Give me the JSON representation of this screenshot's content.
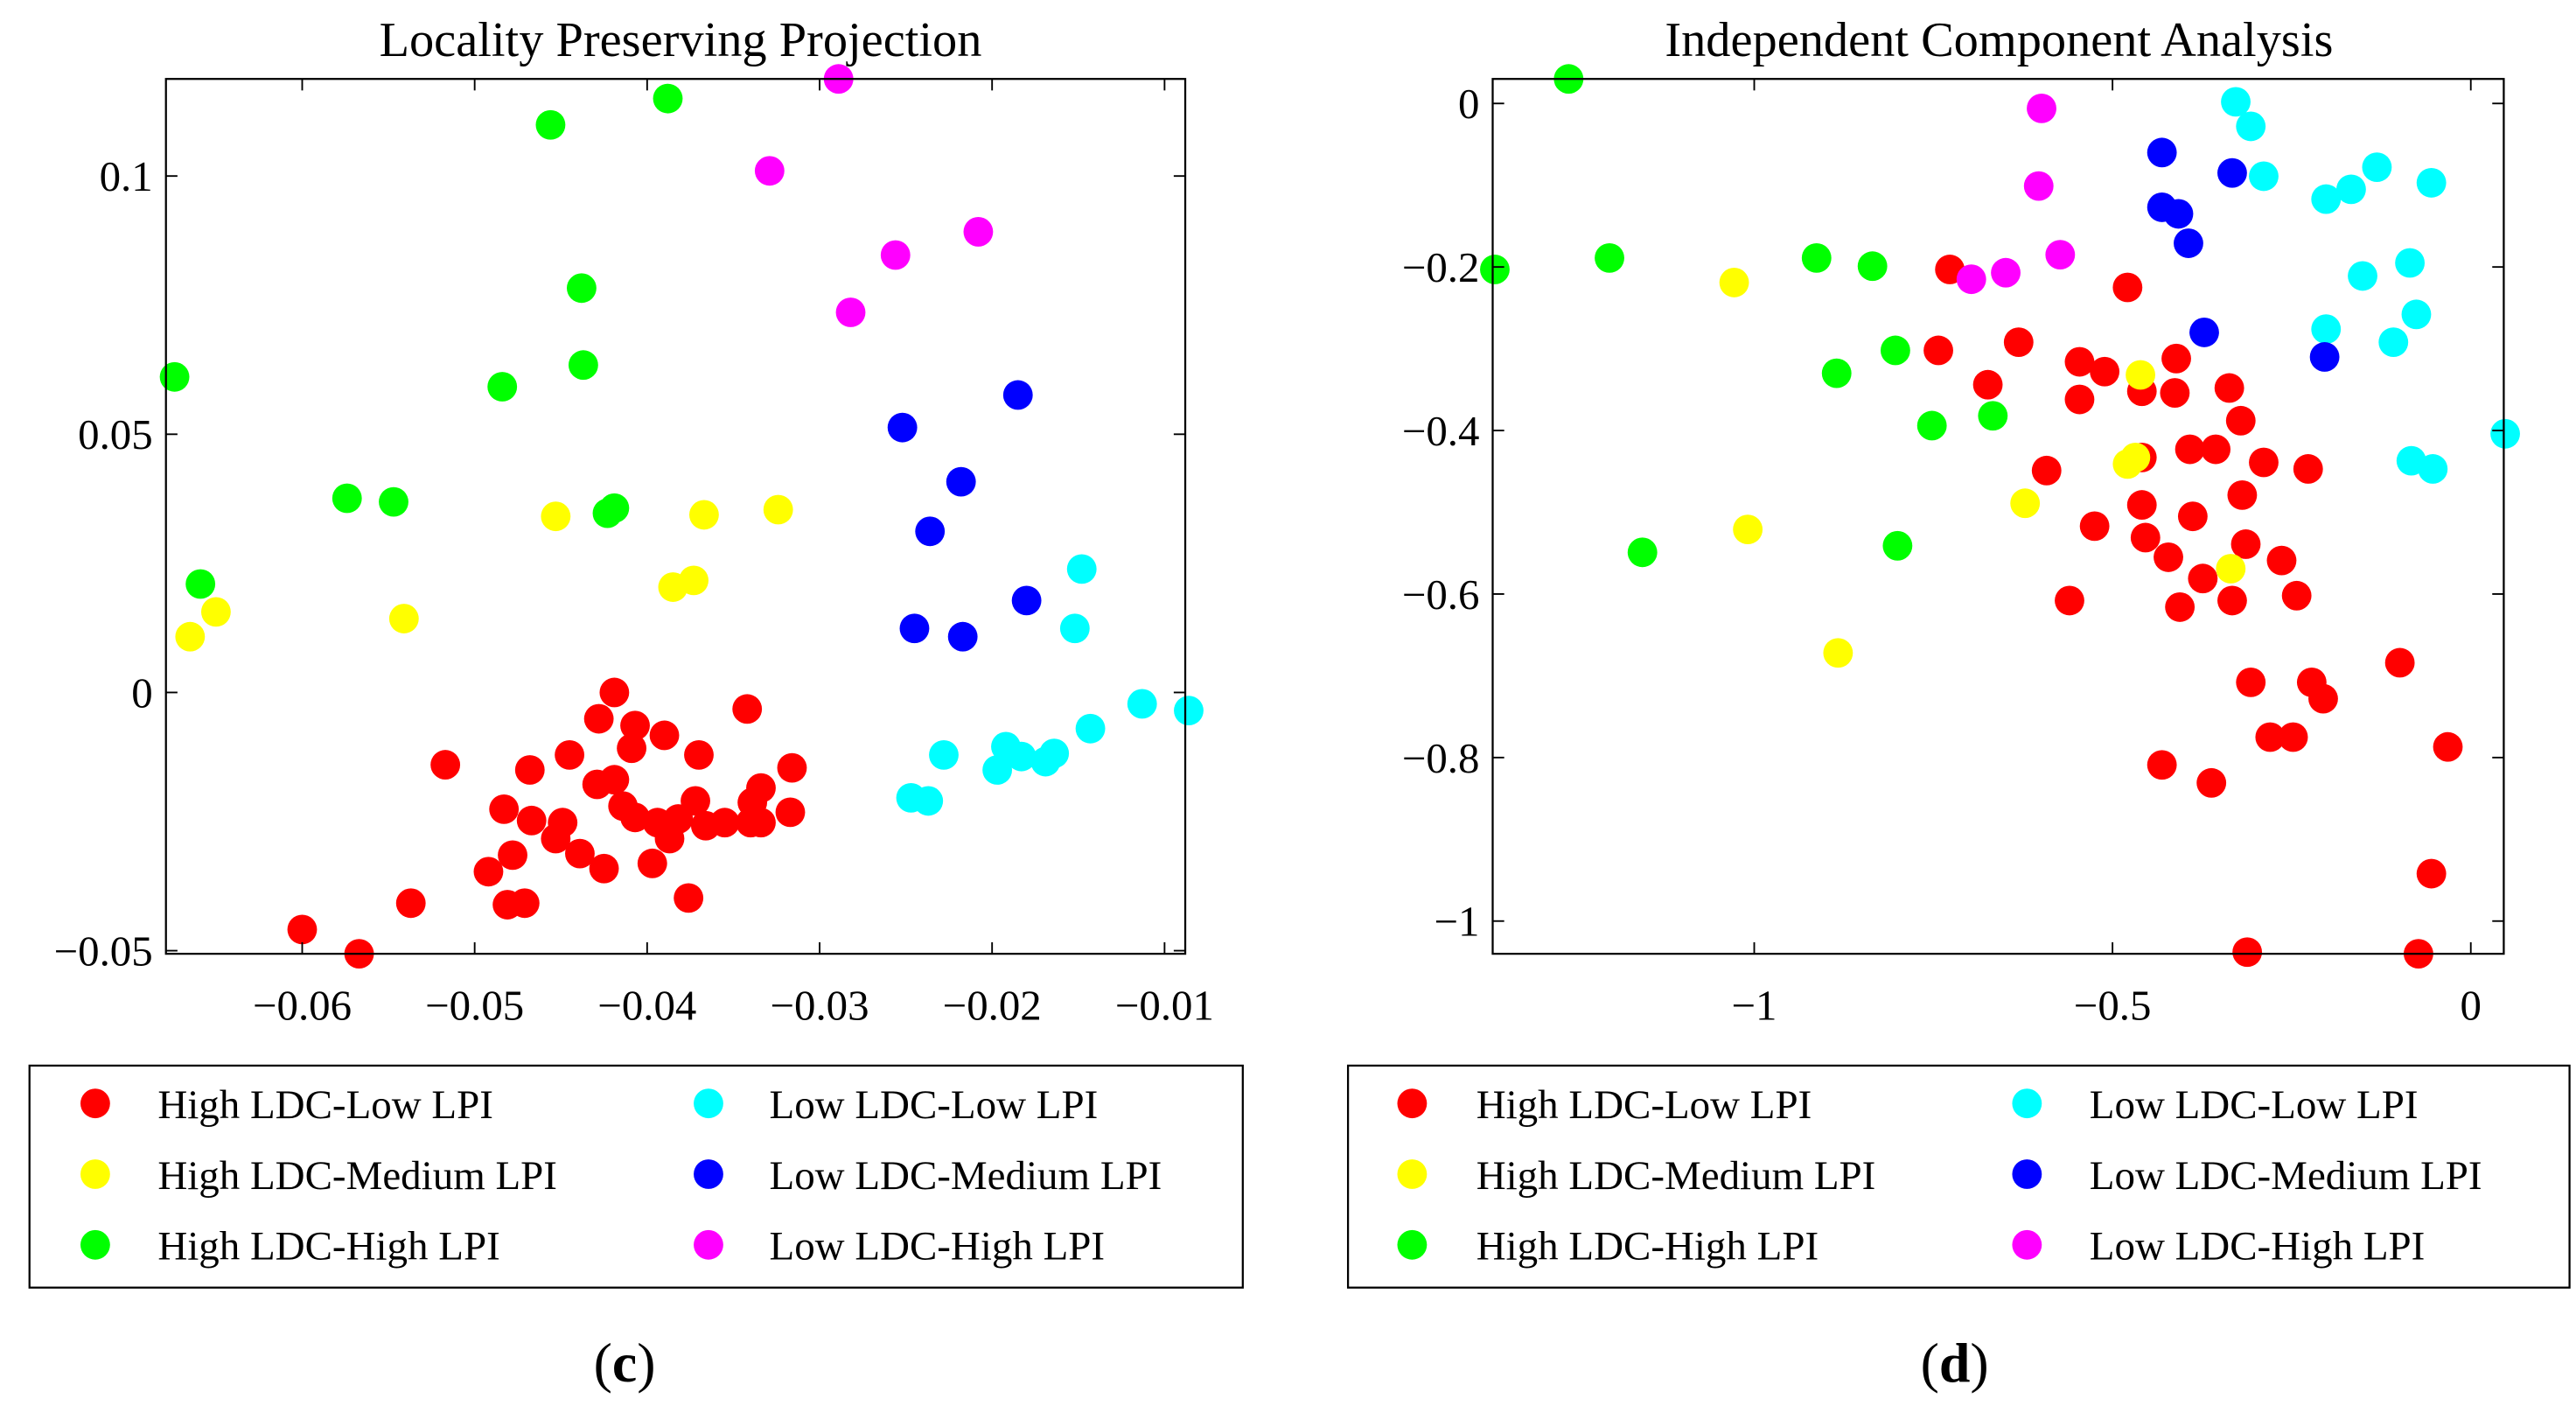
{
  "colors": {
    "High LDC-Low LPI": "#ff0000",
    "High LDC-Medium LPI": "#ffff00",
    "High LDC-High LPI": "#00ff00",
    "Low LDC-Low LPI": "#00ffff",
    "Low LDC-Medium LPI": "#0000ff",
    "Low LDC-High LPI": "#ff00ff"
  },
  "chart_data": [
    {
      "type": "scatter",
      "title": "Locality Preserving Projection",
      "panel_label": {
        "open": "(",
        "letter": "c",
        "close": ")"
      },
      "xlim": [
        -0.0679,
        -0.0088
      ],
      "ylim": [
        -0.0506,
        0.1188
      ],
      "xticks": [
        -0.06,
        -0.05,
        -0.04,
        -0.03,
        -0.02,
        -0.01
      ],
      "xtick_labels": [
        "−0.06",
        "−0.05",
        "−0.04",
        "−0.03",
        "−0.02",
        "−0.01"
      ],
      "yticks": [
        -0.05,
        0,
        0.05,
        0.1
      ],
      "ytick_labels": [
        "−0.05",
        "0",
        "0.05",
        "0.1"
      ],
      "legend_placement": "below",
      "legend": [
        "High LDC-Low LPI",
        "High LDC-Medium LPI",
        "High LDC-High LPI",
        "Low LDC-Low LPI",
        "Low LDC-Medium LPI",
        "Low LDC-High LPI"
      ],
      "series": [
        {
          "name": "High LDC-Low LPI",
          "points": [
            [
              -0.0419,
              0
            ],
            [
              -0.0342,
              -0.0032
            ],
            [
              -0.0428,
              -0.0051
            ],
            [
              -0.0407,
              -0.0064
            ],
            [
              -0.039,
              -0.0083
            ],
            [
              -0.0409,
              -0.0108
            ],
            [
              -0.037,
              -0.0121
            ],
            [
              -0.0445,
              -0.0121
            ],
            [
              -0.0517,
              -0.014
            ],
            [
              -0.0468,
              -0.015
            ],
            [
              -0.0316,
              -0.0146
            ],
            [
              -0.0419,
              -0.0169
            ],
            [
              -0.0334,
              -0.0185
            ],
            [
              -0.0429,
              -0.0178
            ],
            [
              -0.0339,
              -0.0213
            ],
            [
              -0.0372,
              -0.021
            ],
            [
              -0.0414,
              -0.022
            ],
            [
              -0.0483,
              -0.0226
            ],
            [
              -0.0317,
              -0.0232
            ],
            [
              -0.0407,
              -0.0242
            ],
            [
              -0.0467,
              -0.0248
            ],
            [
              -0.0449,
              -0.0252
            ],
            [
              -0.0394,
              -0.0252
            ],
            [
              -0.0382,
              -0.0245
            ],
            [
              -0.0366,
              -0.0258
            ],
            [
              -0.0355,
              -0.0252
            ],
            [
              -0.034,
              -0.0252
            ],
            [
              -0.0334,
              -0.0252
            ],
            [
              -0.0387,
              -0.0283
            ],
            [
              -0.0453,
              -0.0283
            ],
            [
              -0.0439,
              -0.0312
            ],
            [
              -0.0478,
              -0.0315
            ],
            [
              -0.0425,
              -0.0341
            ],
            [
              -0.0397,
              -0.0331
            ],
            [
              -0.0492,
              -0.0347
            ],
            [
              -0.0481,
              -0.0411
            ],
            [
              -0.0471,
              -0.0408
            ],
            [
              -0.0376,
              -0.0398
            ],
            [
              -0.0537,
              -0.0408
            ],
            [
              -0.06,
              -0.0459
            ],
            [
              -0.0567,
              -0.0506
            ]
          ]
        },
        {
          "name": "High LDC-Medium LPI",
          "points": [
            [
              -0.0665,
              0.0108
            ],
            [
              -0.065,
              0.0156
            ],
            [
              -0.0541,
              0.0143
            ],
            [
              -0.0453,
              0.0341
            ],
            [
              -0.0367,
              0.0344
            ],
            [
              -0.0324,
              0.0354
            ],
            [
              -0.0385,
              0.0204
            ],
            [
              -0.0373,
              0.0217
            ]
          ]
        },
        {
          "name": "High LDC-High LPI",
          "points": [
            [
              -0.0674,
              0.0611
            ],
            [
              -0.0659,
              0.021
            ],
            [
              -0.0574,
              0.0376
            ],
            [
              -0.0547,
              0.0369
            ],
            [
              -0.0484,
              0.0592
            ],
            [
              -0.0437,
              0.0634
            ],
            [
              -0.0438,
              0.0783
            ],
            [
              -0.0456,
              0.1099
            ],
            [
              -0.0388,
              0.115
            ],
            [
              -0.0423,
              0.0347
            ],
            [
              -0.0419,
              0.0357
            ]
          ]
        },
        {
          "name": "Low LDC-Low LPI",
          "points": [
            [
              -0.0148,
              0.0239
            ],
            [
              -0.0152,
              0.0124
            ],
            [
              -0.0113,
              -0.0022
            ],
            [
              -0.0086,
              -0.0035
            ],
            [
              -0.0143,
              -0.007
            ],
            [
              -0.0228,
              -0.0121
            ],
            [
              -0.0192,
              -0.0105
            ],
            [
              -0.0183,
              -0.0124
            ],
            [
              -0.0169,
              -0.0134
            ],
            [
              -0.0164,
              -0.0118
            ],
            [
              -0.0197,
              -0.015
            ],
            [
              -0.0247,
              -0.0204
            ],
            [
              -0.0237,
              -0.021
            ]
          ]
        },
        {
          "name": "Low LDC-Medium LPI",
          "points": [
            [
              -0.0185,
              0.0576
            ],
            [
              -0.0252,
              0.0513
            ],
            [
              -0.0218,
              0.0408
            ],
            [
              -0.0236,
              0.0312
            ],
            [
              -0.018,
              0.0178
            ],
            [
              -0.0245,
              0.0124
            ],
            [
              -0.0217,
              0.0108
            ]
          ]
        },
        {
          "name": "Low LDC-High LPI",
          "points": [
            [
              -0.0289,
              0.1188
            ],
            [
              -0.0329,
              0.101
            ],
            [
              -0.0256,
              0.0847
            ],
            [
              -0.0208,
              0.0892
            ],
            [
              -0.0282,
              0.0736
            ]
          ]
        }
      ]
    },
    {
      "type": "scatter",
      "title": "Independent Component Analysis",
      "panel_label": {
        "open": "(",
        "letter": "d",
        "close": ")"
      },
      "xlim": [
        -1.365,
        0.046
      ],
      "ylim": [
        -1.04,
        0.03
      ],
      "xticks": [
        -1,
        -0.5,
        0
      ],
      "xtick_labels": [
        "−1",
        "−0.5",
        "0"
      ],
      "yticks": [
        -1,
        -0.8,
        -0.6,
        -0.4,
        -0.2,
        0
      ],
      "ytick_labels": [
        "−1",
        "−0.8",
        "−0.6",
        "−0.4",
        "−0.2",
        "0"
      ],
      "legend_placement": "below",
      "legend": [
        "High LDC-Low LPI",
        "High LDC-Medium LPI",
        "High LDC-High LPI",
        "Low LDC-Low LPI",
        "Low LDC-Medium LPI",
        "Low LDC-High LPI"
      ],
      "series": [
        {
          "name": "High LDC-Low LPI",
          "points": [
            [
              -0.727,
              -0.203
            ],
            [
              -0.743,
              -0.302
            ],
            [
              -0.479,
              -0.225
            ],
            [
              -0.631,
              -0.292
            ],
            [
              -0.674,
              -0.344
            ],
            [
              -0.546,
              -0.316
            ],
            [
              -0.511,
              -0.328
            ],
            [
              -0.546,
              -0.362
            ],
            [
              -0.459,
              -0.352
            ],
            [
              -0.411,
              -0.312
            ],
            [
              -0.413,
              -0.354
            ],
            [
              -0.337,
              -0.348
            ],
            [
              -0.321,
              -0.388
            ],
            [
              -0.392,
              -0.423
            ],
            [
              -0.356,
              -0.423
            ],
            [
              -0.592,
              -0.449
            ],
            [
              -0.289,
              -0.439
            ],
            [
              -0.227,
              -0.447
            ],
            [
              -0.459,
              -0.433
            ],
            [
              -0.459,
              -0.491
            ],
            [
              -0.319,
              -0.479
            ],
            [
              -0.388,
              -0.505
            ],
            [
              -0.525,
              -0.517
            ],
            [
              -0.454,
              -0.531
            ],
            [
              -0.422,
              -0.555
            ],
            [
              -0.314,
              -0.539
            ],
            [
              -0.264,
              -0.559
            ],
            [
              -0.374,
              -0.581
            ],
            [
              -0.56,
              -0.608
            ],
            [
              -0.406,
              -0.616
            ],
            [
              -0.333,
              -0.608
            ],
            [
              -0.243,
              -0.602
            ],
            [
              -0.099,
              -0.684
            ],
            [
              -0.307,
              -0.708
            ],
            [
              -0.222,
              -0.708
            ],
            [
              -0.206,
              -0.728
            ],
            [
              -0.28,
              -0.775
            ],
            [
              -0.248,
              -0.775
            ],
            [
              -0.032,
              -0.787
            ],
            [
              -0.431,
              -0.809
            ],
            [
              -0.362,
              -0.831
            ],
            [
              -0.055,
              -0.942
            ],
            [
              -0.312,
              -1.038
            ],
            [
              -0.073,
              -1.04
            ]
          ]
        },
        {
          "name": "High LDC-Medium LPI",
          "points": [
            [
              -1.028,
              -0.219
            ],
            [
              -1.009,
              -0.521
            ],
            [
              -0.883,
              -0.672
            ],
            [
              -0.622,
              -0.489
            ],
            [
              -0.461,
              -0.332
            ],
            [
              -0.468,
              -0.433
            ],
            [
              -0.479,
              -0.441
            ],
            [
              -0.335,
              -0.569
            ]
          ]
        },
        {
          "name": "High LDC-High LPI",
          "points": [
            [
              -1.259,
              0.03
            ],
            [
              -1.362,
              -0.203
            ],
            [
              -1.202,
              -0.189
            ],
            [
              -0.913,
              -0.189
            ],
            [
              -0.835,
              -0.199
            ],
            [
              -0.803,
              -0.302
            ],
            [
              -0.885,
              -0.33
            ],
            [
              -0.752,
              -0.394
            ],
            [
              -0.667,
              -0.382
            ],
            [
              -1.156,
              -0.549
            ],
            [
              -0.8,
              -0.541
            ]
          ]
        },
        {
          "name": "Low LDC-Low LPI",
          "points": [
            [
              -0.328,
              0.002
            ],
            [
              -0.307,
              -0.028
            ],
            [
              -0.289,
              -0.089
            ],
            [
              -0.131,
              -0.078
            ],
            [
              -0.167,
              -0.105
            ],
            [
              -0.202,
              -0.117
            ],
            [
              -0.055,
              -0.097
            ],
            [
              -0.085,
              -0.195
            ],
            [
              -0.151,
              -0.211
            ],
            [
              -0.076,
              -0.258
            ],
            [
              -0.202,
              -0.276
            ],
            [
              -0.108,
              -0.292
            ],
            [
              -0.083,
              -0.437
            ],
            [
              -0.053,
              -0.447
            ],
            [
              0.048,
              -0.404
            ]
          ]
        },
        {
          "name": "Low LDC-Medium LPI",
          "points": [
            [
              -0.431,
              -0.06
            ],
            [
              -0.333,
              -0.085
            ],
            [
              -0.431,
              -0.127
            ],
            [
              -0.408,
              -0.135
            ],
            [
              -0.394,
              -0.171
            ],
            [
              -0.372,
              -0.28
            ],
            [
              -0.204,
              -0.31
            ]
          ]
        },
        {
          "name": "Low LDC-High LPI",
          "points": [
            [
              -0.599,
              -0.006
            ],
            [
              -0.603,
              -0.101
            ],
            [
              -0.573,
              -0.185
            ],
            [
              -0.697,
              -0.215
            ],
            [
              -0.649,
              -0.207
            ]
          ]
        }
      ]
    }
  ]
}
